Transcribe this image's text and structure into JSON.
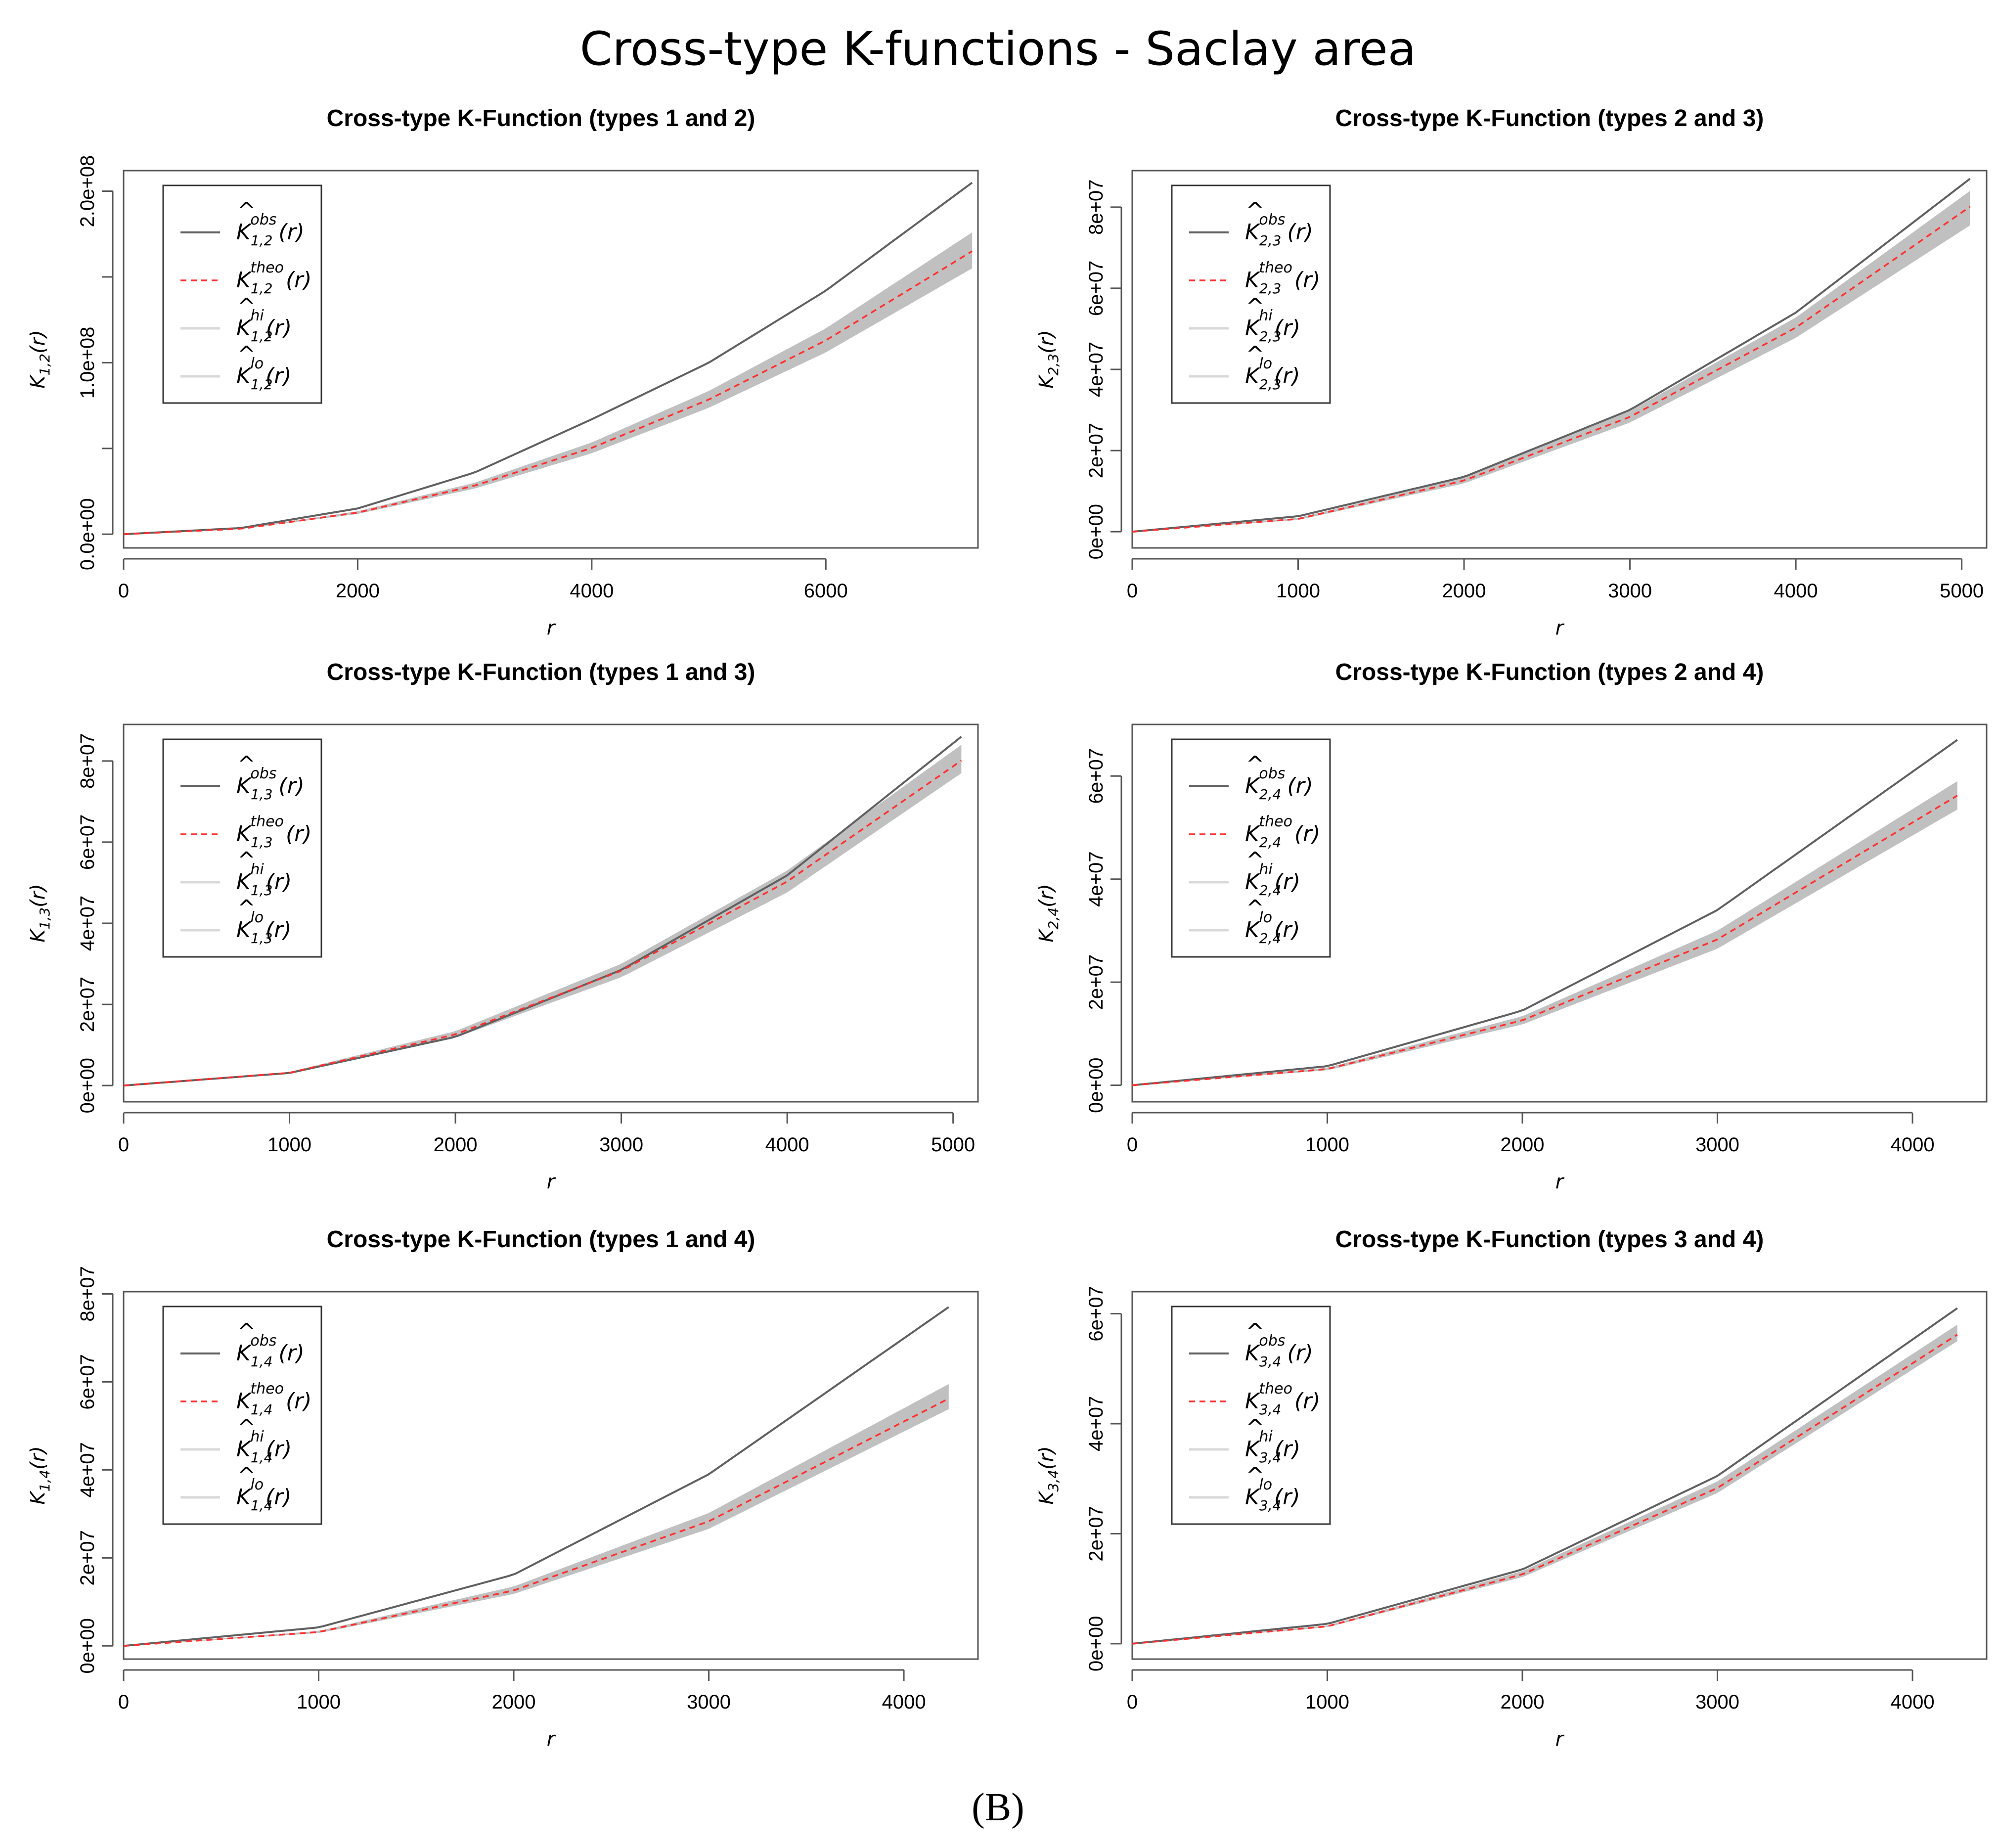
{
  "figure": {
    "title": "Cross-type K-functions - Saclay area",
    "panel_label": "(B)",
    "colors": {
      "obs": "#606060",
      "theo": "#ff3030",
      "envelope": "#c0c0c0",
      "frame": "#555555"
    }
  },
  "chart_data": [
    {
      "type": "line",
      "title": "Cross-type K-Function (types 1 and 2)",
      "pair": "1,2",
      "xlabel": "r",
      "xlim": [
        0,
        7300
      ],
      "xticks": [
        0,
        2000,
        4000,
        6000
      ],
      "xtick_labels": [
        "0",
        "2000",
        "4000",
        "6000"
      ],
      "ylim": [
        -8000000,
        212000000
      ],
      "yticks": [
        0,
        50000000,
        100000000,
        150000000,
        200000000
      ],
      "ytick_labels": [
        "0.0e+00",
        "",
        "1.0e+08",
        "",
        "2.0e+08"
      ],
      "x": [
        0,
        1000,
        2000,
        3000,
        4000,
        5000,
        6000,
        7250
      ],
      "series": [
        {
          "name": "obs",
          "values": [
            0,
            3600000,
            15000000,
            36000000,
            67000000,
            100000000,
            142000000,
            205000000
          ]
        },
        {
          "name": "theo",
          "values": [
            0,
            3150000,
            12600000,
            28300000,
            50300000,
            78500000,
            113000000,
            165000000
          ]
        },
        {
          "name": "hi",
          "values": [
            0,
            3300000,
            13400000,
            30000000,
            53500000,
            83500000,
            120000000,
            176000000
          ]
        },
        {
          "name": "lo",
          "values": [
            0,
            3000000,
            11800000,
            26600000,
            47200000,
            73700000,
            106000000,
            155000000
          ]
        }
      ],
      "legend": [
        "obs",
        "theo",
        "hi",
        "lo"
      ]
    },
    {
      "type": "line",
      "title": "Cross-type K-Function (types 2 and 3)",
      "pair": "2,3",
      "xlabel": "r",
      "xlim": [
        0,
        5150
      ],
      "xticks": [
        0,
        1000,
        2000,
        3000,
        4000,
        5000
      ],
      "xtick_labels": [
        "0",
        "1000",
        "2000",
        "3000",
        "4000",
        "5000"
      ],
      "ylim": [
        -4000000,
        89000000
      ],
      "yticks": [
        0,
        20000000,
        40000000,
        60000000,
        80000000
      ],
      "ytick_labels": [
        "0e+00",
        "2e+07",
        "4e+07",
        "6e+07",
        "8e+07"
      ],
      "x": [
        0,
        1000,
        2000,
        3000,
        4000,
        5050
      ],
      "series": [
        {
          "name": "obs",
          "values": [
            0,
            3800000,
            13500000,
            30000000,
            54000000,
            87000000
          ]
        },
        {
          "name": "theo",
          "values": [
            0,
            3150000,
            12600000,
            28300000,
            50300000,
            80100000
          ]
        },
        {
          "name": "hi",
          "values": [
            0,
            3400000,
            13300000,
            29700000,
            52800000,
            84000000
          ]
        },
        {
          "name": "lo",
          "values": [
            0,
            2900000,
            11900000,
            26900000,
            47800000,
            75500000
          ]
        }
      ],
      "legend": [
        "obs",
        "theo",
        "hi",
        "lo"
      ]
    },
    {
      "type": "line",
      "title": "Cross-type K-Function (types 1 and 3)",
      "pair": "1,3",
      "xlabel": "r",
      "xlim": [
        0,
        5150
      ],
      "xticks": [
        0,
        1000,
        2000,
        3000,
        4000,
        5000
      ],
      "xtick_labels": [
        "0",
        "1000",
        "2000",
        "3000",
        "4000",
        "5000"
      ],
      "ylim": [
        -4000000,
        89000000
      ],
      "yticks": [
        0,
        20000000,
        40000000,
        60000000,
        80000000
      ],
      "ytick_labels": [
        "0e+00",
        "2e+07",
        "4e+07",
        "6e+07",
        "8e+07"
      ],
      "x": [
        0,
        1000,
        2000,
        3000,
        4000,
        5050
      ],
      "series": [
        {
          "name": "obs",
          "values": [
            0,
            3100000,
            12000000,
            28500000,
            51800000,
            86000000
          ]
        },
        {
          "name": "theo",
          "values": [
            0,
            3150000,
            12600000,
            28300000,
            50300000,
            80100000
          ]
        },
        {
          "name": "hi",
          "values": [
            0,
            3350000,
            13400000,
            30000000,
            53000000,
            84000000
          ]
        },
        {
          "name": "lo",
          "values": [
            0,
            2950000,
            11800000,
            26700000,
            47600000,
            77000000
          ]
        }
      ],
      "legend": [
        "obs",
        "theo",
        "hi",
        "lo"
      ]
    },
    {
      "type": "line",
      "title": "Cross-type K-Function (types 2 and 4)",
      "pair": "2,4",
      "xlabel": "r",
      "xlim": [
        0,
        4380
      ],
      "xticks": [
        0,
        1000,
        2000,
        3000,
        4000
      ],
      "xtick_labels": [
        "0",
        "1000",
        "2000",
        "3000",
        "4000"
      ],
      "ylim": [
        -3200000,
        70000000
      ],
      "yticks": [
        0,
        20000000,
        40000000,
        60000000
      ],
      "ytick_labels": [
        "0e+00",
        "2e+07",
        "4e+07",
        "6e+07"
      ],
      "x": [
        0,
        1000,
        2000,
        3000,
        4230
      ],
      "series": [
        {
          "name": "obs",
          "values": [
            0,
            3700000,
            14500000,
            34000000,
            67000000
          ]
        },
        {
          "name": "theo",
          "values": [
            0,
            3150000,
            12600000,
            28300000,
            56200000
          ]
        },
        {
          "name": "hi",
          "values": [
            0,
            3400000,
            13400000,
            30000000,
            59000000
          ]
        },
        {
          "name": "lo",
          "values": [
            0,
            2900000,
            11800000,
            26500000,
            53500000
          ]
        }
      ],
      "legend": [
        "obs",
        "theo",
        "hi",
        "lo"
      ]
    },
    {
      "type": "line",
      "title": "Cross-type K-Function (types 1 and 4)",
      "pair": "1,4",
      "xlabel": "r",
      "xlim": [
        0,
        4380
      ],
      "xticks": [
        0,
        1000,
        2000,
        3000,
        4000
      ],
      "xtick_labels": [
        "0",
        "1000",
        "2000",
        "3000",
        "4000"
      ],
      "ylim": [
        -3000000,
        80500000
      ],
      "yticks": [
        0,
        20000000,
        40000000,
        60000000,
        80000000
      ],
      "ytick_labels": [
        "0e+00",
        "2e+07",
        "4e+07",
        "6e+07",
        "8e+07"
      ],
      "x": [
        0,
        1000,
        2000,
        3000,
        4230
      ],
      "series": [
        {
          "name": "obs",
          "values": [
            0,
            4200000,
            16200000,
            39000000,
            77000000
          ]
        },
        {
          "name": "theo",
          "values": [
            0,
            3150000,
            12600000,
            28300000,
            56200000
          ]
        },
        {
          "name": "hi",
          "values": [
            0,
            3400000,
            13500000,
            30200000,
            59500000
          ]
        },
        {
          "name": "lo",
          "values": [
            0,
            2900000,
            11800000,
            26600000,
            53800000
          ]
        }
      ],
      "legend": [
        "obs",
        "theo",
        "hi",
        "lo"
      ]
    },
    {
      "type": "line",
      "title": "Cross-type K-Function (types 3 and 4)",
      "pair": "3,4",
      "xlabel": "r",
      "xlim": [
        0,
        4380
      ],
      "xticks": [
        0,
        1000,
        2000,
        3000,
        4000
      ],
      "xtick_labels": [
        "0",
        "1000",
        "2000",
        "3000",
        "4000"
      ],
      "ylim": [
        -2800000,
        64000000
      ],
      "yticks": [
        0,
        20000000,
        40000000,
        60000000
      ],
      "ytick_labels": [
        "0e+00",
        "2e+07",
        "4e+07",
        "6e+07"
      ],
      "x": [
        0,
        1000,
        2000,
        3000,
        4230
      ],
      "series": [
        {
          "name": "obs",
          "values": [
            0,
            3600000,
            13500000,
            30500000,
            61000000
          ]
        },
        {
          "name": "theo",
          "values": [
            0,
            3150000,
            12600000,
            28300000,
            56200000
          ]
        },
        {
          "name": "hi",
          "values": [
            0,
            3300000,
            13200000,
            29500000,
            58000000
          ]
        },
        {
          "name": "lo",
          "values": [
            0,
            3000000,
            12100000,
            27400000,
            55000000
          ]
        }
      ],
      "legend": [
        "obs",
        "theo",
        "hi",
        "lo"
      ]
    }
  ]
}
